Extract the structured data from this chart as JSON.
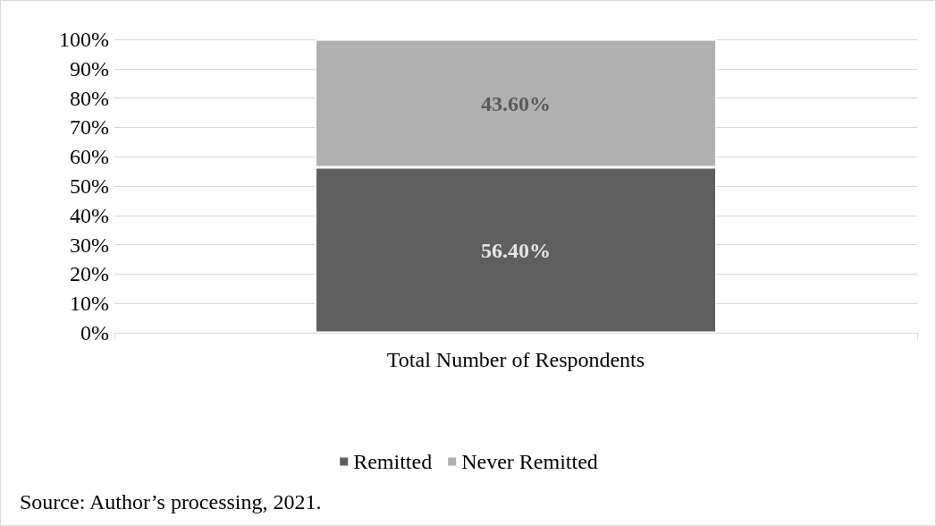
{
  "chart_data": {
    "type": "bar",
    "stacked": true,
    "categories": [
      "Total Number of Respondents"
    ],
    "series": [
      {
        "name": "Remitted",
        "color": "#5f5f5f",
        "values": [
          56.4
        ],
        "value_labels": [
          "56.40%"
        ]
      },
      {
        "name": "Never Remitted",
        "color": "#b0b0b0",
        "values": [
          43.6
        ],
        "value_labels": [
          "43.60%"
        ]
      }
    ],
    "ylim": [
      0,
      100
    ],
    "yticks": [
      {
        "value": 0,
        "label": "0%"
      },
      {
        "value": 10,
        "label": "10%"
      },
      {
        "value": 20,
        "label": "20%"
      },
      {
        "value": 30,
        "label": "30%"
      },
      {
        "value": 40,
        "label": "40%"
      },
      {
        "value": 50,
        "label": "50%"
      },
      {
        "value": 60,
        "label": "60%"
      },
      {
        "value": 70,
        "label": "70%"
      },
      {
        "value": 80,
        "label": "80%"
      },
      {
        "value": 90,
        "label": "90%"
      },
      {
        "value": 100,
        "label": "100%"
      }
    ],
    "grid": "y",
    "legend": "bottom",
    "annotations": [
      "Source: Author’s processing, 2021."
    ]
  }
}
